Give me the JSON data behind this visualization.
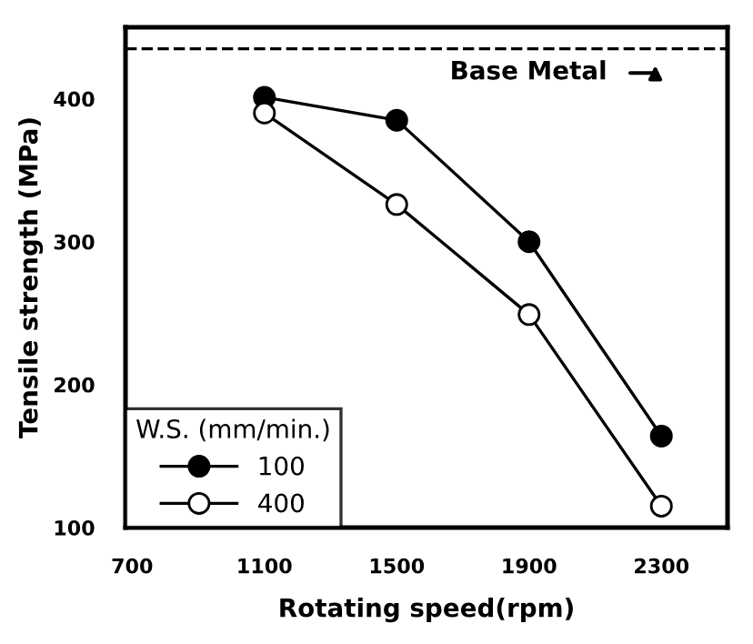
{
  "chart_data": {
    "type": "line",
    "xlabel": "Rotating speed(rpm)",
    "ylabel": "Tensile strength (MPa)",
    "x": [
      1100,
      1500,
      1900,
      2300
    ],
    "series": [
      {
        "name": "100",
        "color": "#000000",
        "values": [
          401,
          385,
          300,
          164
        ],
        "marker": "circle"
      },
      {
        "name": "400",
        "color": "#000000",
        "values": [
          390,
          326,
          249,
          115
        ],
        "marker": "circle"
      }
    ],
    "xlim": [
      680,
      2500
    ],
    "xticks": [
      700,
      1100,
      1500,
      1900,
      2300
    ],
    "ylim": [
      100,
      450
    ],
    "yticks": [
      100,
      200,
      300,
      400
    ],
    "ref_lines": [
      {
        "axis": "y",
        "value": 435,
        "label": "Base Metal",
        "color": "#000000",
        "line_style": "dashed"
      }
    ],
    "legend": "bottom left",
    "legend_title": "W.S. (mm/min.)",
    "grid": false
  }
}
